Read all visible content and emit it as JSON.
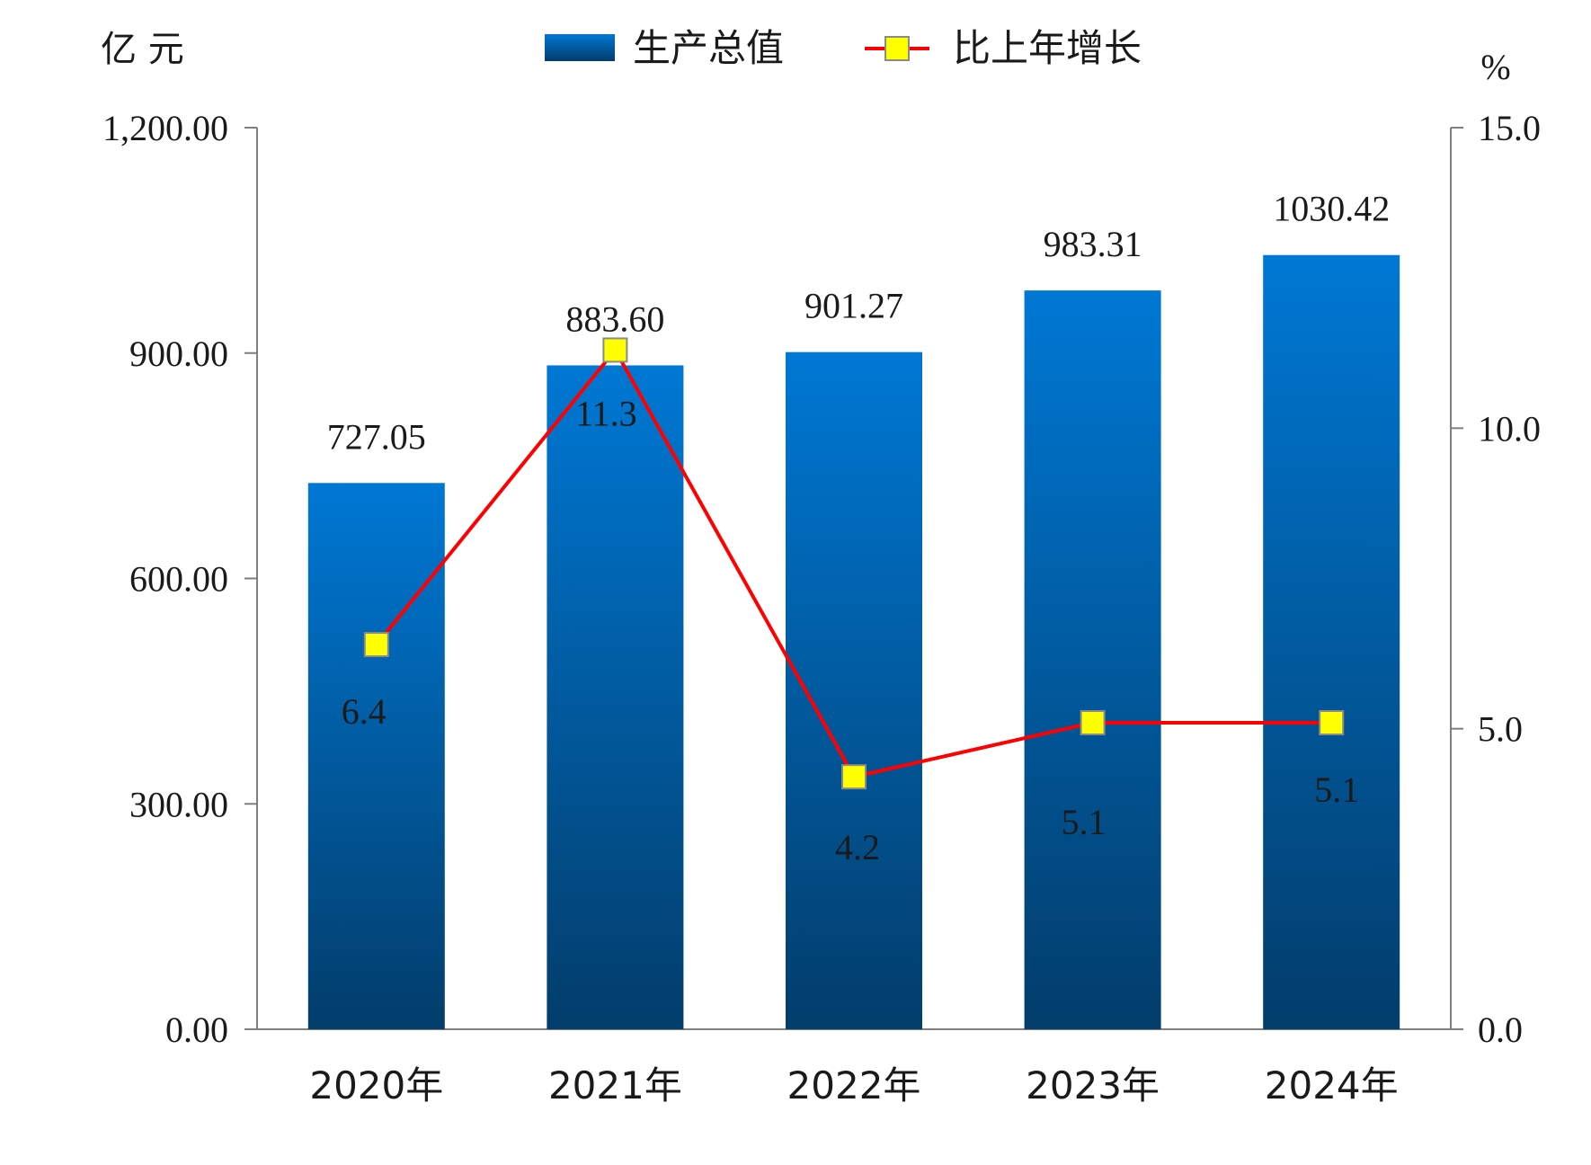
{
  "chart_data": {
    "type": "bar",
    "categories": [
      "2020年",
      "2021年",
      "2022年",
      "2023年",
      "2024年"
    ],
    "series": [
      {
        "name": "生产总值",
        "type": "bar",
        "axis": "left",
        "values": [
          727.05,
          883.6,
          901.27,
          983.31,
          1030.42
        ],
        "labels": [
          "727.05",
          "883.60",
          "901.27",
          "983.31",
          "1030.42"
        ],
        "color_top": "#0078d4",
        "color_bottom": "#023d6b"
      },
      {
        "name": "比上年增长",
        "type": "line",
        "axis": "right",
        "values": [
          6.4,
          11.3,
          4.2,
          5.1,
          5.1
        ],
        "labels": [
          "6.4",
          "11.3",
          "4.2",
          "5.1",
          "5.1"
        ],
        "line_color": "#ff0000",
        "marker_color": "#ffff00"
      }
    ],
    "left_axis": {
      "unit": "亿 元",
      "min": 0,
      "max": 1200,
      "ticks": [
        0,
        300,
        600,
        900,
        1200
      ],
      "tick_labels": [
        "0.00",
        "300.00",
        "600.00",
        "900.00",
        "1,200.00"
      ]
    },
    "right_axis": {
      "unit": "%",
      "min": 0,
      "max": 15,
      "ticks": [
        0,
        5,
        10,
        15
      ],
      "tick_labels": [
        "0.0",
        "5.0",
        "10.0",
        "15.0"
      ]
    },
    "legend_position": "top-center",
    "grid": false
  }
}
